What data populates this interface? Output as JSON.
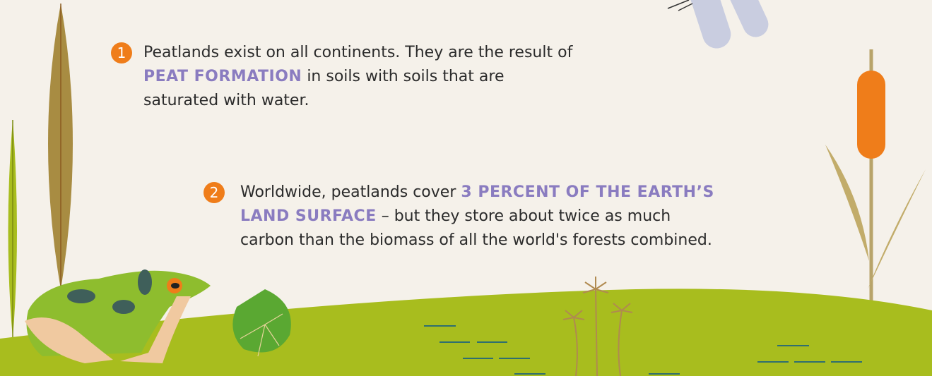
{
  "items": [
    {
      "number": "1",
      "parts": [
        "Peatlands exist on all continents. They are the result of ",
        "PEAT FORMATION",
        " in soils with soils that are saturated with water."
      ]
    },
    {
      "number": "2",
      "parts": [
        "Worldwide, peatlands cover ",
        "3 PERCENT OF THE EARTH’S LAND SURFACE",
        " – but they store about twice as much carbon than the biomass of all the world's forests combined."
      ]
    }
  ]
}
